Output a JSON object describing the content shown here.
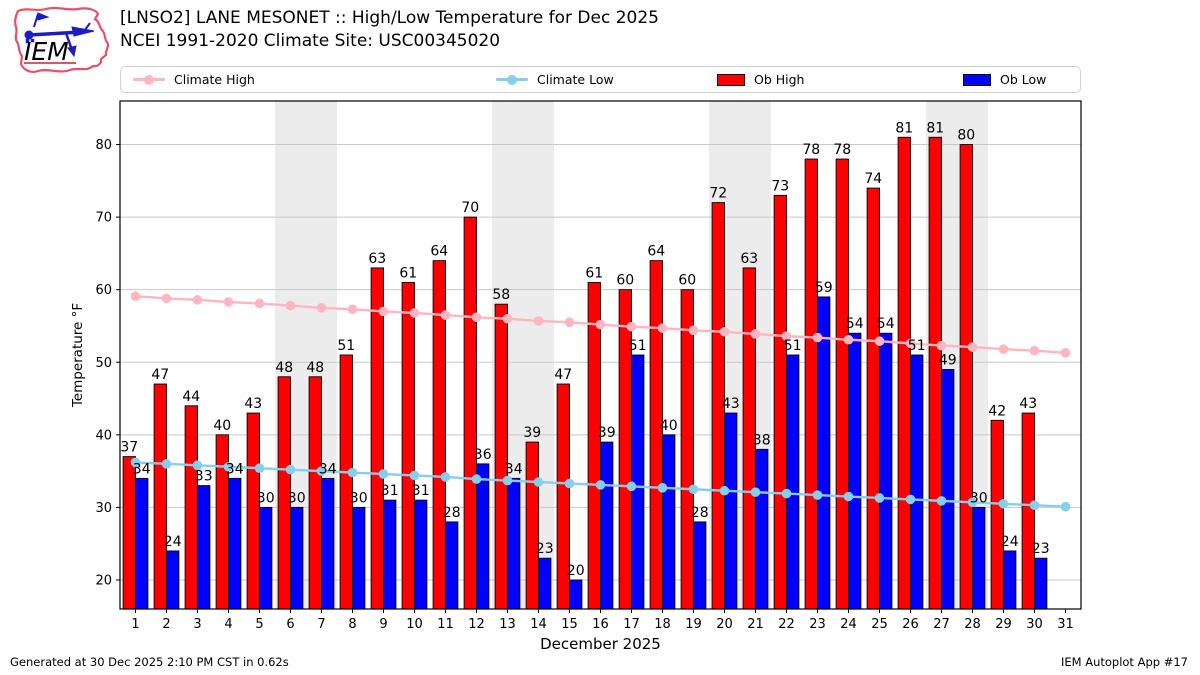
{
  "header": {
    "title_line1": "[LNSO2] LANE MESONET :: High/Low Temperature for Dec 2025",
    "title_line2": "NCEI 1991-2020 Climate Site: USC00345020",
    "logo_text": "IEM"
  },
  "legend": {
    "items": [
      {
        "label": "Climate High",
        "type": "line",
        "color": "#ffb6c1"
      },
      {
        "label": "Climate Low",
        "type": "line",
        "color": "#87ceeb"
      },
      {
        "label": "Ob High",
        "type": "patch",
        "color": "#ff0000"
      },
      {
        "label": "Ob Low",
        "type": "patch",
        "color": "#0000ff"
      }
    ]
  },
  "footer": {
    "generated": "Generated at 30 Dec 2025 2:10 PM CST in 0.62s",
    "app": "IEM Autoplot App #17"
  },
  "chart_data": {
    "type": "bar",
    "title": "[LNSO2] LANE MESONET :: High/Low Temperature for Dec 2025",
    "subtitle": "NCEI 1991-2020 Climate Site: USC00345020",
    "xlabel": "December 2025",
    "ylabel": "Temperature °F",
    "ylim": [
      16,
      86
    ],
    "yticks": [
      20,
      30,
      40,
      50,
      60,
      70,
      80
    ],
    "grid": "horizontal",
    "grid_color": "#c8c8c8",
    "band_color": "#ececec",
    "legend_position": "top",
    "weekend_bands": [
      [
        5.5,
        7.5
      ],
      [
        12.5,
        14.5
      ],
      [
        19.5,
        21.5
      ],
      [
        26.5,
        28.5
      ]
    ],
    "x": [
      1,
      2,
      3,
      4,
      5,
      6,
      7,
      8,
      9,
      10,
      11,
      12,
      13,
      14,
      15,
      16,
      17,
      18,
      19,
      20,
      21,
      22,
      23,
      24,
      25,
      26,
      27,
      28,
      29,
      30,
      31
    ],
    "series": [
      {
        "name": "Climate High",
        "type": "line",
        "color": "#ffb6c1",
        "values": [
          59.1,
          58.8,
          58.6,
          58.3,
          58.1,
          57.8,
          57.5,
          57.3,
          57.0,
          56.8,
          56.5,
          56.2,
          56.0,
          55.7,
          55.5,
          55.2,
          54.9,
          54.7,
          54.4,
          54.2,
          53.9,
          53.6,
          53.4,
          53.1,
          52.9,
          52.6,
          52.3,
          52.1,
          51.8,
          51.6,
          51.3
        ]
      },
      {
        "name": "Climate Low",
        "type": "line",
        "color": "#87ceeb",
        "values": [
          36.2,
          36.0,
          35.8,
          35.6,
          35.4,
          35.2,
          35.0,
          34.8,
          34.6,
          34.4,
          34.2,
          33.9,
          33.7,
          33.5,
          33.3,
          33.1,
          32.9,
          32.7,
          32.5,
          32.3,
          32.1,
          31.9,
          31.7,
          31.5,
          31.3,
          31.1,
          30.9,
          30.7,
          30.5,
          30.3,
          30.1
        ]
      },
      {
        "name": "Ob High",
        "type": "bar",
        "color": "#ff0000",
        "labeled": true,
        "values": [
          37,
          47,
          44,
          40,
          43,
          48,
          48,
          51,
          63,
          61,
          64,
          70,
          58,
          39,
          47,
          61,
          60,
          64,
          60,
          72,
          63,
          73,
          78,
          78,
          74,
          81,
          81,
          80,
          42,
          43,
          null
        ]
      },
      {
        "name": "Ob Low",
        "type": "bar",
        "color": "#0000ff",
        "labeled": true,
        "values": [
          34,
          24,
          33,
          34,
          30,
          30,
          34,
          30,
          31,
          31,
          28,
          36,
          34,
          23,
          20,
          39,
          51,
          40,
          28,
          43,
          38,
          51,
          59,
          54,
          54,
          51,
          49,
          30,
          24,
          23,
          null
        ]
      }
    ]
  }
}
